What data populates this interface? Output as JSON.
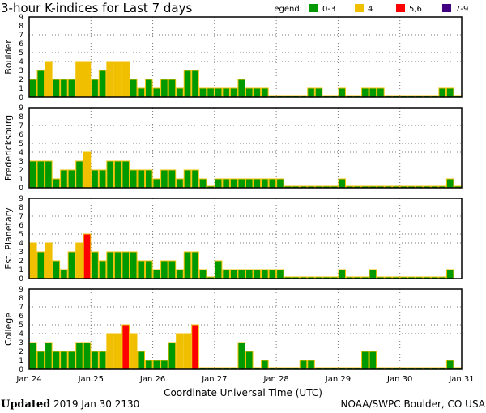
{
  "chart_data": {
    "type": "bar",
    "title": "3-hour K-indices for Last 7 days",
    "xlabel": "Coordinate Universal Time (UTC)",
    "ylim": [
      0,
      9
    ],
    "yticks": [
      "0",
      "1",
      "2",
      "3",
      "4",
      "5",
      "6",
      "7",
      "8",
      "9"
    ],
    "xticks": [
      "Jan 24",
      "Jan 25",
      "Jan 26",
      "Jan 27",
      "Jan 28",
      "Jan 29",
      "Jan 30",
      "Jan 31"
    ],
    "bars_per_day": 8,
    "legend": {
      "label": "Legend:",
      "items": [
        {
          "label": "0-3",
          "color": "#009900"
        },
        {
          "label": "4",
          "color": "#f0c000"
        },
        {
          "label": "5,6",
          "color": "#ff0000"
        },
        {
          "label": "7-9",
          "color": "#400080"
        }
      ]
    },
    "series": [
      {
        "name": "Boulder",
        "values": [
          2,
          3,
          4,
          2,
          2,
          2,
          4,
          4,
          2,
          3,
          4,
          4,
          4,
          2,
          1,
          2,
          1,
          2,
          2,
          1,
          3,
          3,
          1,
          1,
          1,
          1,
          1,
          2,
          1,
          1,
          1,
          0,
          0,
          0,
          0,
          0,
          1,
          1,
          0,
          0,
          1,
          0,
          0,
          1,
          1,
          1,
          0,
          0,
          0,
          0,
          0,
          0,
          0,
          1,
          1,
          0
        ]
      },
      {
        "name": "Fredericksburg",
        "values": [
          3,
          3,
          3,
          1,
          2,
          2,
          3,
          4,
          2,
          2,
          3,
          3,
          3,
          2,
          2,
          2,
          1,
          2,
          2,
          1,
          2,
          2,
          1,
          0,
          1,
          1,
          1,
          1,
          1,
          1,
          1,
          1,
          1,
          0,
          0,
          0,
          0,
          0,
          0,
          0,
          1,
          0,
          0,
          0,
          0,
          0,
          0,
          0,
          0,
          0,
          0,
          0,
          0,
          0,
          1,
          0
        ]
      },
      {
        "name": "Est. Planetary",
        "values": [
          4,
          3,
          4,
          2,
          1,
          3,
          4,
          5,
          3,
          2,
          3,
          3,
          3,
          3,
          2,
          2,
          1,
          2,
          2,
          1,
          3,
          3,
          1,
          0,
          2,
          1,
          1,
          1,
          1,
          1,
          1,
          1,
          1,
          0,
          0,
          0,
          0,
          0,
          0,
          0,
          1,
          0,
          0,
          0,
          1,
          0,
          0,
          0,
          0,
          0,
          0,
          0,
          0,
          0,
          1,
          null
        ]
      },
      {
        "name": "College",
        "values": [
          3,
          2,
          3,
          2,
          2,
          2,
          3,
          3,
          2,
          2,
          4,
          4,
          5,
          4,
          2,
          1,
          1,
          1,
          3,
          4,
          4,
          5,
          0,
          0,
          0,
          0,
          0,
          3,
          2,
          0,
          1,
          0,
          0,
          0,
          0,
          1,
          1,
          0,
          0,
          0,
          0,
          0,
          0,
          2,
          2,
          0,
          0,
          0,
          0,
          0,
          0,
          0,
          0,
          0,
          1,
          0
        ]
      }
    ]
  },
  "footer": {
    "updated_label": "Updated",
    "updated_value": "2019 Jan 30 2130",
    "source": "NOAA/SWPC Boulder, CO USA"
  }
}
